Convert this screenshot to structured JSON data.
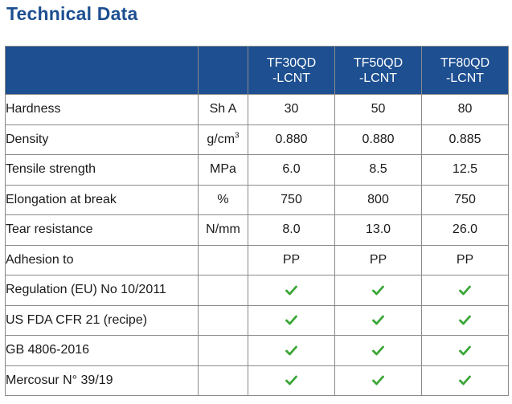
{
  "title": "Technical Data",
  "colors": {
    "header_bg": "#1d4f91",
    "check": "#3aa636",
    "title": "#1d4f91"
  },
  "columns": [
    {
      "line1": "TF30QD",
      "line2": "-LCNT"
    },
    {
      "line1": "TF50QD",
      "line2": "-LCNT"
    },
    {
      "line1": "TF80QD",
      "line2": "-LCNT"
    }
  ],
  "rows": [
    {
      "property": "Hardness",
      "unit": "Sh A",
      "unit_sup": "",
      "values": [
        "30",
        "50",
        "80"
      ]
    },
    {
      "property": "Density",
      "unit": "g/cm",
      "unit_sup": "3",
      "values": [
        "0.880",
        "0.880",
        "0.885"
      ]
    },
    {
      "property": "Tensile strength",
      "unit": "MPa",
      "unit_sup": "",
      "values": [
        "6.0",
        "8.5",
        "12.5"
      ]
    },
    {
      "property": "Elongation at break",
      "unit": "%",
      "unit_sup": "",
      "values": [
        "750",
        "800",
        "750"
      ]
    },
    {
      "property": "Tear resistance",
      "unit": "N/mm",
      "unit_sup": "",
      "values": [
        "8.0",
        "13.0",
        "26.0"
      ]
    },
    {
      "property": "Adhesion to",
      "unit": "",
      "unit_sup": "",
      "values": [
        "PP",
        "PP",
        "PP"
      ]
    }
  ],
  "compliance": [
    {
      "property": "Regulation (EU) No 10/2011",
      "icon": "check-icon",
      "values": [
        true,
        true,
        true
      ]
    },
    {
      "property": "US FDA CFR 21 (recipe)",
      "icon": "check-icon",
      "values": [
        true,
        true,
        true
      ]
    },
    {
      "property": "GB 4806-2016",
      "icon": "check-icon",
      "values": [
        true,
        true,
        true
      ]
    },
    {
      "property": "Mercosur N° 39/19",
      "icon": "check-icon",
      "values": [
        true,
        true,
        true
      ]
    }
  ]
}
